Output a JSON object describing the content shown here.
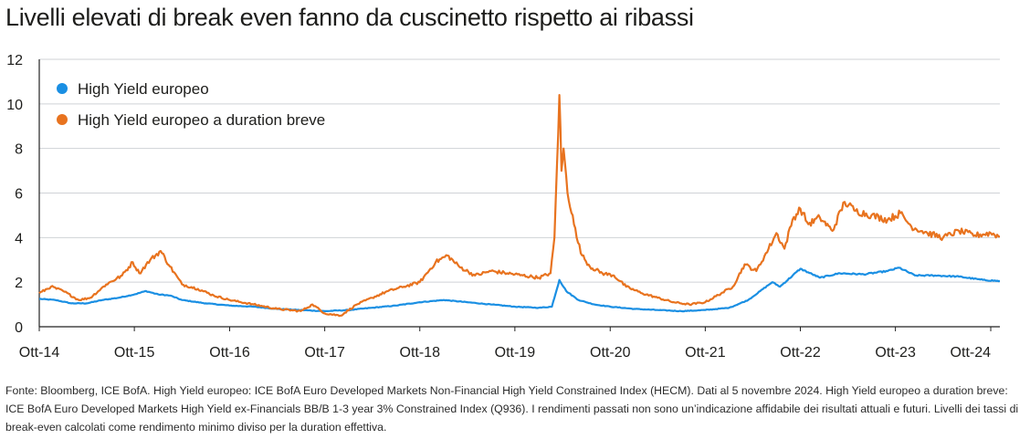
{
  "chart_data": {
    "type": "line",
    "title": "Livelli elevati di break even fanno da cuscinetto rispetto ai ribassi",
    "xlabel": "",
    "ylabel": "",
    "ylim": [
      0,
      12
    ],
    "xlim": [
      "2014-10-01",
      "2024-11-05"
    ],
    "y_ticks": [
      "0",
      "2",
      "4",
      "6",
      "8",
      "10",
      "12"
    ],
    "x_tick_labels": [
      "Ott-14",
      "Ott-15",
      "Ott-16",
      "Ott-17",
      "Ott-18",
      "Ott-19",
      "Ott-20",
      "Ott-21",
      "Ott-22",
      "Ott-23",
      "Ott-24"
    ],
    "grid": "horizontal",
    "legend_position": "top-left",
    "series": [
      {
        "name": "High Yield europeo",
        "color": "#1a8fe3",
        "points": [
          [
            "2014-10-01",
            1.25
          ],
          [
            "2014-12-01",
            1.2
          ],
          [
            "2015-02-01",
            1.05
          ],
          [
            "2015-04-01",
            1.05
          ],
          [
            "2015-06-01",
            1.2
          ],
          [
            "2015-08-01",
            1.3
          ],
          [
            "2015-10-01",
            1.45
          ],
          [
            "2015-11-15",
            1.6
          ],
          [
            "2016-01-01",
            1.45
          ],
          [
            "2016-02-15",
            1.4
          ],
          [
            "2016-04-01",
            1.2
          ],
          [
            "2016-07-01",
            1.05
          ],
          [
            "2016-10-01",
            0.95
          ],
          [
            "2017-01-01",
            0.9
          ],
          [
            "2017-04-01",
            0.8
          ],
          [
            "2017-07-01",
            0.75
          ],
          [
            "2017-10-01",
            0.7
          ],
          [
            "2018-01-01",
            0.75
          ],
          [
            "2018-04-01",
            0.85
          ],
          [
            "2018-07-01",
            0.95
          ],
          [
            "2018-10-01",
            1.1
          ],
          [
            "2019-01-01",
            1.2
          ],
          [
            "2019-04-01",
            1.1
          ],
          [
            "2019-07-01",
            1.0
          ],
          [
            "2019-10-01",
            0.9
          ],
          [
            "2020-01-01",
            0.85
          ],
          [
            "2020-02-20",
            0.9
          ],
          [
            "2020-03-20",
            2.1
          ],
          [
            "2020-04-15",
            1.6
          ],
          [
            "2020-06-01",
            1.2
          ],
          [
            "2020-08-01",
            1.0
          ],
          [
            "2020-10-01",
            0.9
          ],
          [
            "2021-01-01",
            0.8
          ],
          [
            "2021-04-01",
            0.75
          ],
          [
            "2021-07-01",
            0.7
          ],
          [
            "2021-10-01",
            0.75
          ],
          [
            "2022-01-01",
            0.85
          ],
          [
            "2022-03-15",
            1.2
          ],
          [
            "2022-06-15",
            2.0
          ],
          [
            "2022-07-15",
            1.8
          ],
          [
            "2022-10-01",
            2.6
          ],
          [
            "2022-12-15",
            2.2
          ],
          [
            "2023-03-01",
            2.4
          ],
          [
            "2023-06-01",
            2.35
          ],
          [
            "2023-09-01",
            2.5
          ],
          [
            "2023-10-15",
            2.65
          ],
          [
            "2023-12-15",
            2.3
          ],
          [
            "2024-03-01",
            2.3
          ],
          [
            "2024-06-01",
            2.25
          ],
          [
            "2024-09-01",
            2.1
          ],
          [
            "2024-11-05",
            2.05
          ]
        ]
      },
      {
        "name": "High Yield europeo a duration breve",
        "color": "#e8731f",
        "points": [
          [
            "2014-10-01",
            1.5
          ],
          [
            "2014-11-15",
            1.8
          ],
          [
            "2015-01-01",
            1.6
          ],
          [
            "2015-03-01",
            1.2
          ],
          [
            "2015-04-15",
            1.3
          ],
          [
            "2015-06-15",
            1.9
          ],
          [
            "2015-08-15",
            2.3
          ],
          [
            "2015-09-25",
            2.9
          ],
          [
            "2015-10-20",
            2.4
          ],
          [
            "2015-12-01",
            3.0
          ],
          [
            "2016-01-10",
            3.4
          ],
          [
            "2016-02-15",
            2.7
          ],
          [
            "2016-04-01",
            1.9
          ],
          [
            "2016-06-01",
            1.7
          ],
          [
            "2016-08-01",
            1.4
          ],
          [
            "2016-10-01",
            1.2
          ],
          [
            "2017-01-01",
            1.0
          ],
          [
            "2017-04-01",
            0.8
          ],
          [
            "2017-07-01",
            0.7
          ],
          [
            "2017-08-15",
            1.0
          ],
          [
            "2017-10-01",
            0.6
          ],
          [
            "2017-12-01",
            0.5
          ],
          [
            "2018-02-01",
            1.0
          ],
          [
            "2018-04-01",
            1.3
          ],
          [
            "2018-06-01",
            1.6
          ],
          [
            "2018-08-01",
            1.8
          ],
          [
            "2018-10-01",
            2.0
          ],
          [
            "2018-12-01",
            2.9
          ],
          [
            "2019-01-15",
            3.2
          ],
          [
            "2019-03-01",
            2.7
          ],
          [
            "2019-05-01",
            2.3
          ],
          [
            "2019-07-01",
            2.5
          ],
          [
            "2019-09-01",
            2.4
          ],
          [
            "2019-11-01",
            2.3
          ],
          [
            "2020-01-01",
            2.2
          ],
          [
            "2020-02-15",
            2.4
          ],
          [
            "2020-03-01",
            4.0
          ],
          [
            "2020-03-20",
            10.4
          ],
          [
            "2020-03-28",
            7.0
          ],
          [
            "2020-04-05",
            8.0
          ],
          [
            "2020-04-20",
            6.0
          ],
          [
            "2020-05-10",
            5.0
          ],
          [
            "2020-05-25",
            4.0
          ],
          [
            "2020-06-15",
            3.2
          ],
          [
            "2020-07-15",
            2.7
          ],
          [
            "2020-09-01",
            2.4
          ],
          [
            "2020-10-15",
            2.3
          ],
          [
            "2020-12-01",
            1.8
          ],
          [
            "2021-02-01",
            1.5
          ],
          [
            "2021-04-01",
            1.3
          ],
          [
            "2021-06-01",
            1.1
          ],
          [
            "2021-08-01",
            1.0
          ],
          [
            "2021-10-01",
            1.1
          ],
          [
            "2021-12-01",
            1.5
          ],
          [
            "2022-01-15",
            1.8
          ],
          [
            "2022-03-01",
            2.8
          ],
          [
            "2022-04-15",
            2.5
          ],
          [
            "2022-06-01",
            3.5
          ],
          [
            "2022-07-01",
            4.2
          ],
          [
            "2022-08-01",
            3.5
          ],
          [
            "2022-09-01",
            4.8
          ],
          [
            "2022-10-01",
            5.3
          ],
          [
            "2022-11-01",
            4.6
          ],
          [
            "2022-12-15",
            4.9
          ],
          [
            "2023-02-01",
            4.3
          ],
          [
            "2023-03-20",
            5.6
          ],
          [
            "2023-05-01",
            5.2
          ],
          [
            "2023-07-01",
            5.0
          ],
          [
            "2023-09-01",
            4.8
          ],
          [
            "2023-10-20",
            5.1
          ],
          [
            "2023-12-01",
            4.5
          ],
          [
            "2024-02-01",
            4.2
          ],
          [
            "2024-04-01",
            4.0
          ],
          [
            "2024-06-01",
            4.3
          ],
          [
            "2024-08-01",
            4.1
          ],
          [
            "2024-10-01",
            4.2
          ],
          [
            "2024-11-05",
            4.05
          ]
        ]
      }
    ]
  },
  "footnote": "Fonte: Bloomberg, ICE BofA. High Yield europeo: ICE BofA Euro Developed Markets Non-Financial High Yield Constrained Index (HECM). Dati al 5 novembre 2024. High Yield europeo a duration breve: ICE BofA Euro Developed Markets High Yield ex-Financials BB/B 1-3 year 3% Constrained Index (Q936). I rendimenti passati non sono un’indicazione affidabile dei risultati attuali e futuri. Livelli dei tassi di break-even calcolati come rendimento minimo diviso per la duration effettiva."
}
